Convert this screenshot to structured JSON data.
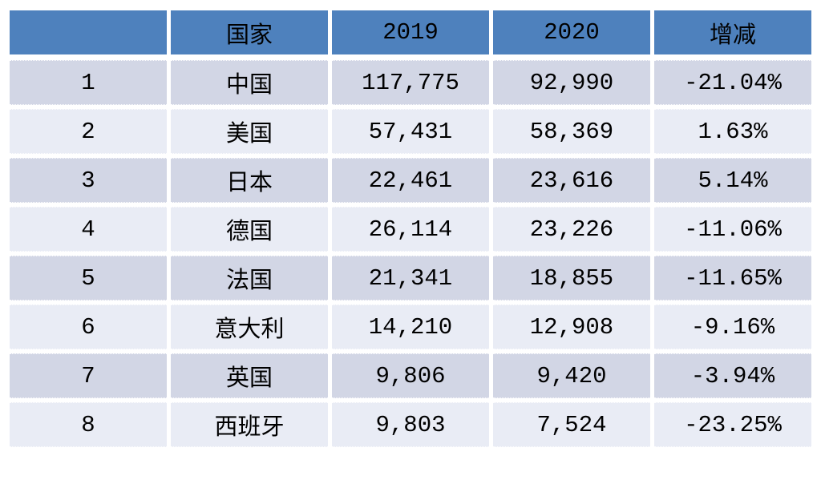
{
  "colors": {
    "header_bg": "#4E81BD",
    "row_odd_bg": "#D2D6E5",
    "row_even_bg": "#E9ECF5",
    "text_color": "#000000",
    "page_bg": "#FFFFFF"
  },
  "table": {
    "headers": {
      "rank": "",
      "country": "国家",
      "y2019": "2019",
      "y2020": "2020",
      "change": "增减"
    },
    "rows": [
      {
        "rank": "1",
        "country": "中国",
        "y2019": "117,775",
        "y2020": "92,990",
        "change": "-21.04%"
      },
      {
        "rank": "2",
        "country": "美国",
        "y2019": "57,431",
        "y2020": "58,369",
        "change": "1.63%"
      },
      {
        "rank": "3",
        "country": "日本",
        "y2019": "22,461",
        "y2020": "23,616",
        "change": "5.14%"
      },
      {
        "rank": "4",
        "country": "德国",
        "y2019": "26,114",
        "y2020": "23,226",
        "change": "-11.06%"
      },
      {
        "rank": "5",
        "country": "法国",
        "y2019": "21,341",
        "y2020": "18,855",
        "change": "-11.65%"
      },
      {
        "rank": "6",
        "country": "意大利",
        "y2019": "14,210",
        "y2020": "12,908",
        "change": "-9.16%"
      },
      {
        "rank": "7",
        "country": "英国",
        "y2019": "9,806",
        "y2020": "9,420",
        "change": "-3.94%"
      },
      {
        "rank": "8",
        "country": "西班牙",
        "y2019": "9,803",
        "y2020": "7,524",
        "change": "-23.25%"
      }
    ]
  },
  "chart_data": {
    "type": "table",
    "columns": [
      "",
      "国家",
      "2019",
      "2020",
      "增减"
    ],
    "rows": [
      [
        "1",
        "中国",
        "117,775",
        "92,990",
        "-21.04%"
      ],
      [
        "2",
        "美国",
        "57,431",
        "58,369",
        "1.63%"
      ],
      [
        "3",
        "日本",
        "22,461",
        "23,616",
        "5.14%"
      ],
      [
        "4",
        "德国",
        "26,114",
        "23,226",
        "-11.06%"
      ],
      [
        "5",
        "法国",
        "21,341",
        "18,855",
        "-11.65%"
      ],
      [
        "6",
        "意大利",
        "14,210",
        "12,908",
        "-9.16%"
      ],
      [
        "7",
        "英国",
        "9,806",
        "9,420",
        "-3.94%"
      ],
      [
        "8",
        "西班牙",
        "9,803",
        "7,524",
        "-23.25%"
      ]
    ],
    "title": "",
    "notes": "banded table, blue header row, values are counts per country for 2019 vs 2020 with percent change"
  }
}
